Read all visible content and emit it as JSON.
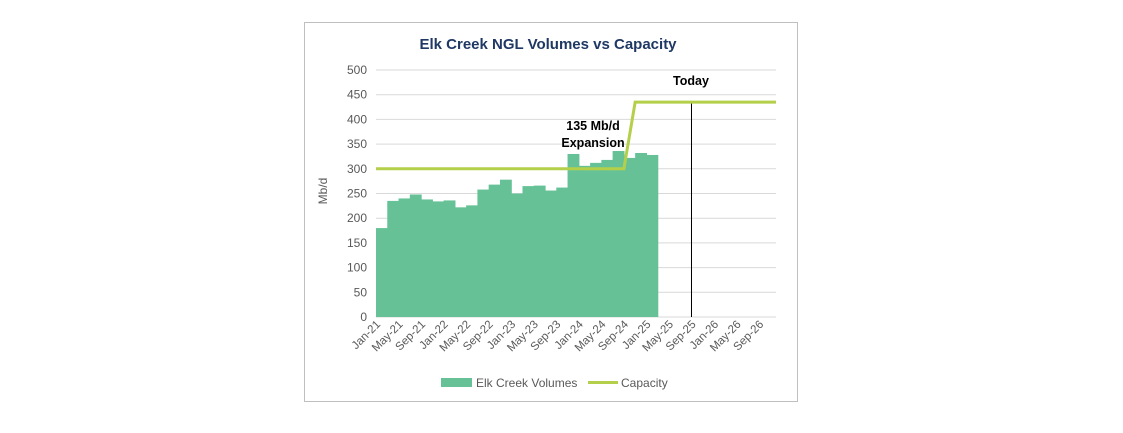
{
  "chart_data": {
    "type": "area",
    "title": "Elk Creek NGL Volumes vs Capacity",
    "ylabel": "Mb/d",
    "xlabel": "",
    "ylim": [
      0,
      500
    ],
    "yticks": [
      0,
      50,
      100,
      150,
      200,
      250,
      300,
      350,
      400,
      450,
      500
    ],
    "grid": true,
    "x_tick_labels": [
      "Jan-21",
      "May-21",
      "Sep-21",
      "Jan-22",
      "May-22",
      "Sep-22",
      "Jan-23",
      "May-23",
      "Sep-23",
      "Jan-24",
      "May-24",
      "Sep-24",
      "Jan-25",
      "May-25",
      "Sep-25",
      "Jan-26",
      "May-26",
      "Sep-26"
    ],
    "series": [
      {
        "name": "Elk Creek Volumes",
        "type": "area",
        "color": "#66c296",
        "x_start": "Jan-21",
        "x_step_months": 2,
        "values": [
          180,
          235,
          240,
          248,
          238,
          234,
          236,
          222,
          226,
          258,
          268,
          278,
          250,
          265,
          266,
          256,
          262,
          330,
          306,
          312,
          318,
          336,
          322,
          332,
          328
        ]
      },
      {
        "name": "Capacity",
        "type": "line",
        "color": "#b4cf4a",
        "points": [
          {
            "month_index": 0,
            "value": 300
          },
          {
            "month_index": 44,
            "value": 300
          },
          {
            "month_index": 46,
            "value": 435
          },
          {
            "month_index": 71,
            "value": 435
          }
        ]
      }
    ],
    "annotations": {
      "today_label": "Today",
      "today_month_index": 56,
      "expansion_label_line1": "135 Mb/d",
      "expansion_label_line2": "Expansion"
    },
    "legend_position": "bottom"
  }
}
